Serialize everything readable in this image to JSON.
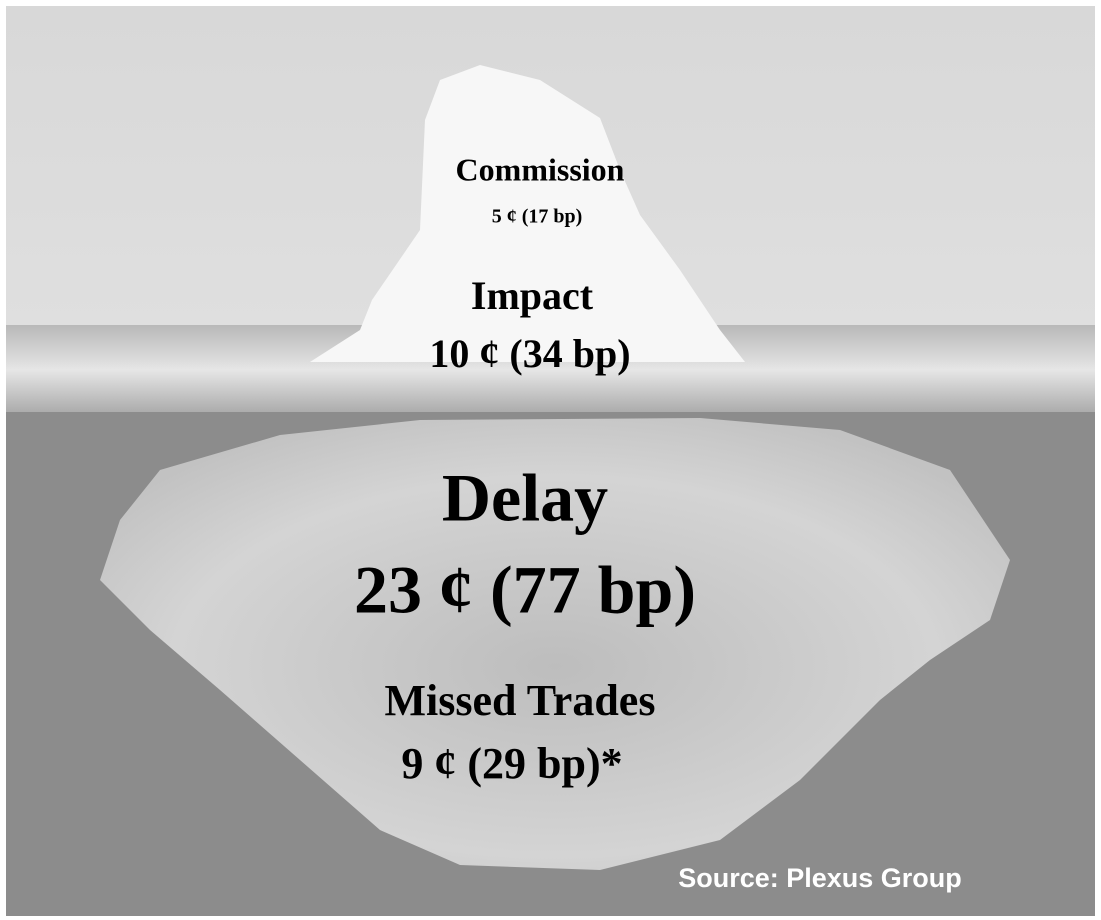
{
  "items": [
    {
      "label": "Commission",
      "cost": "5 ¢ (17 bp)"
    },
    {
      "label": "Impact",
      "cost": "10 ¢ (34 bp)"
    },
    {
      "label": "Delay",
      "cost": "23 ¢ (77 bp)"
    },
    {
      "label": "Missed Trades",
      "cost": "9 ¢ (29 bp)*"
    }
  ],
  "source": "Source: Plexus Group"
}
